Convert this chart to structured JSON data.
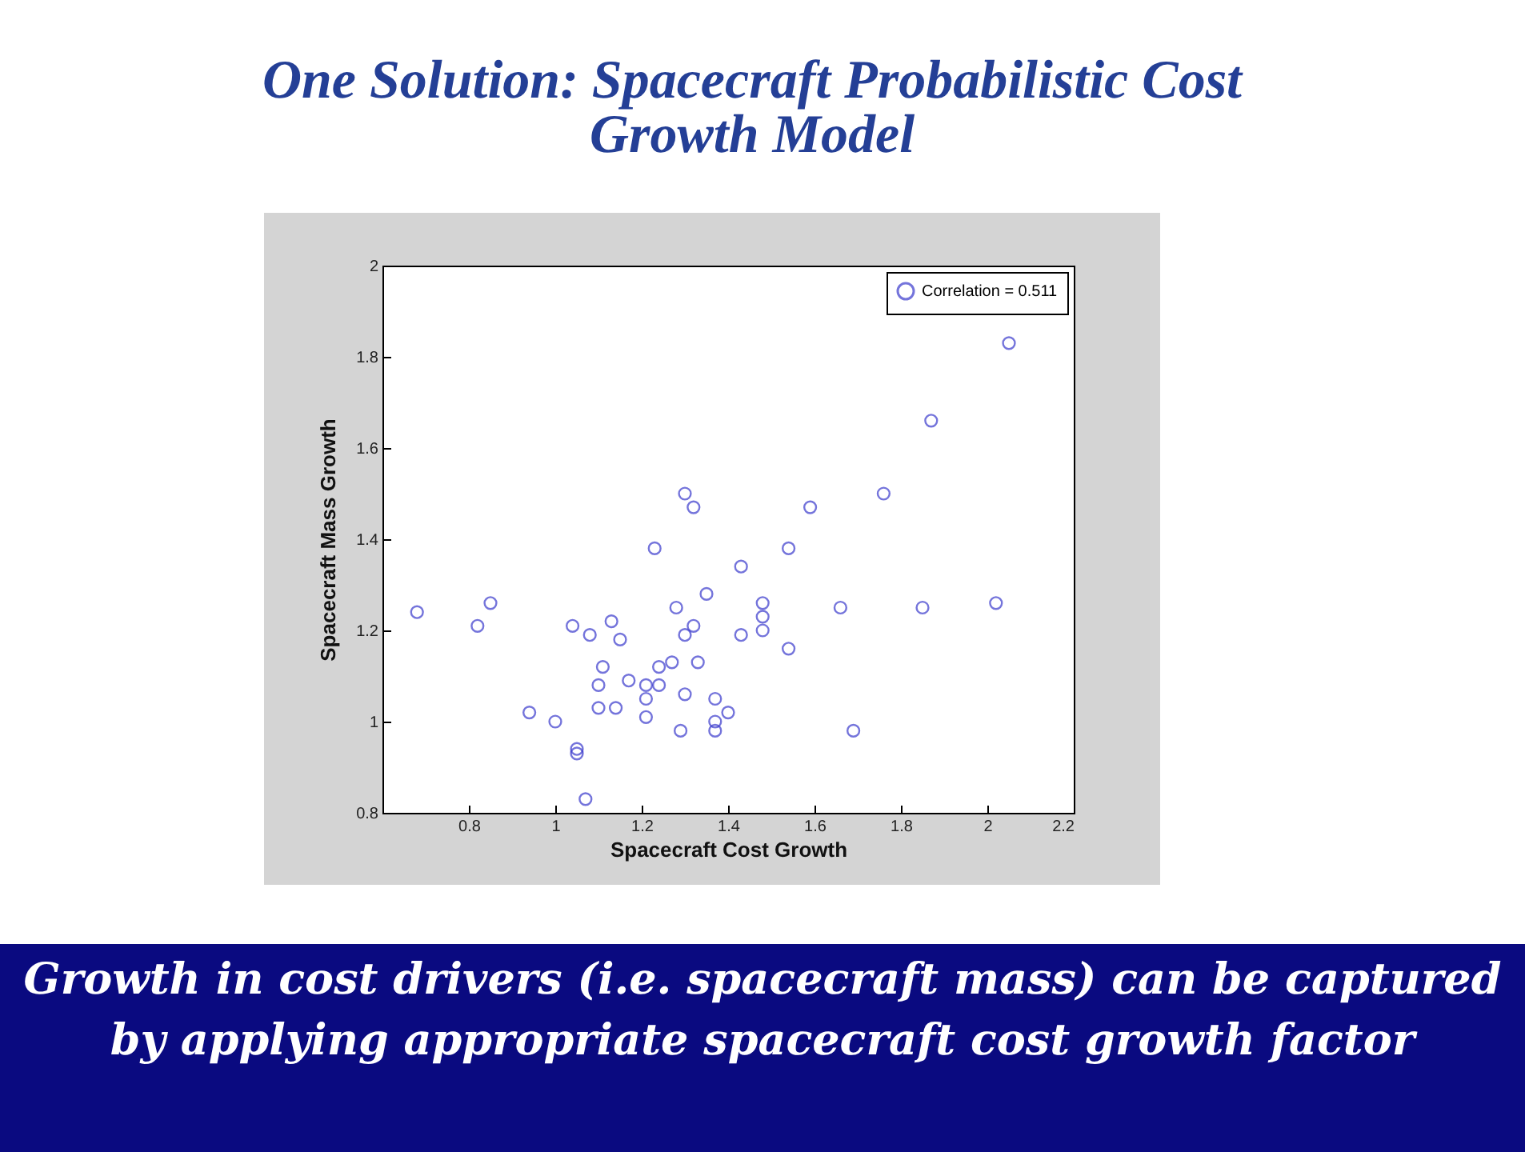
{
  "chart_data": {
    "type": "scatter",
    "title": "One Solution:  Spacecraft Probabilistic Cost Growth Model",
    "xlabel": "Spacecraft Cost Growth",
    "ylabel": "Spacecraft Mass Growth",
    "annotations": [
      "Growth in cost drivers (i.e. spacecraft mass) can be captured by applying appropriate spacecraft cost growth factor"
    ],
    "xlim": [
      0.6,
      2.2
    ],
    "ylim": [
      0.8,
      2
    ],
    "xticks": [
      0.8,
      1,
      1.2,
      1.4,
      1.6,
      1.8,
      2,
      2.2
    ],
    "yticks": [
      0.8,
      1,
      1.2,
      1.4,
      1.6,
      1.8,
      2
    ],
    "grid": false,
    "legend": "top right",
    "marker": "circle",
    "series": [
      {
        "name": "Correlation = 0.511",
        "color": "#3a3acc",
        "x": [
          0.68,
          0.82,
          0.85,
          0.94,
          1.0,
          1.04,
          1.08,
          1.05,
          1.05,
          1.07,
          1.1,
          1.11,
          1.1,
          1.14,
          1.13,
          1.15,
          1.17,
          1.21,
          1.21,
          1.21,
          1.23,
          1.24,
          1.24,
          1.27,
          1.28,
          1.3,
          1.32,
          1.3,
          1.32,
          1.3,
          1.29,
          1.35,
          1.33,
          1.37,
          1.37,
          1.37,
          1.4,
          1.43,
          1.43,
          1.48,
          1.48,
          1.48,
          1.54,
          1.54,
          1.59,
          1.66,
          1.69,
          1.76,
          1.85,
          1.87,
          2.02,
          2.05
        ],
        "values": [
          1.24,
          1.21,
          1.26,
          1.02,
          1.0,
          1.21,
          1.19,
          0.94,
          0.93,
          0.83,
          1.08,
          1.12,
          1.03,
          1.03,
          1.22,
          1.18,
          1.09,
          1.08,
          1.05,
          1.01,
          1.38,
          1.12,
          1.08,
          1.13,
          1.25,
          1.19,
          1.21,
          1.5,
          1.47,
          1.06,
          0.98,
          1.28,
          1.13,
          1.05,
          1.0,
          0.98,
          1.02,
          1.34,
          1.19,
          1.26,
          1.23,
          1.2,
          1.38,
          1.16,
          1.47,
          1.25,
          0.98,
          1.5,
          1.25,
          1.66,
          1.26,
          1.83
        ]
      }
    ]
  }
}
